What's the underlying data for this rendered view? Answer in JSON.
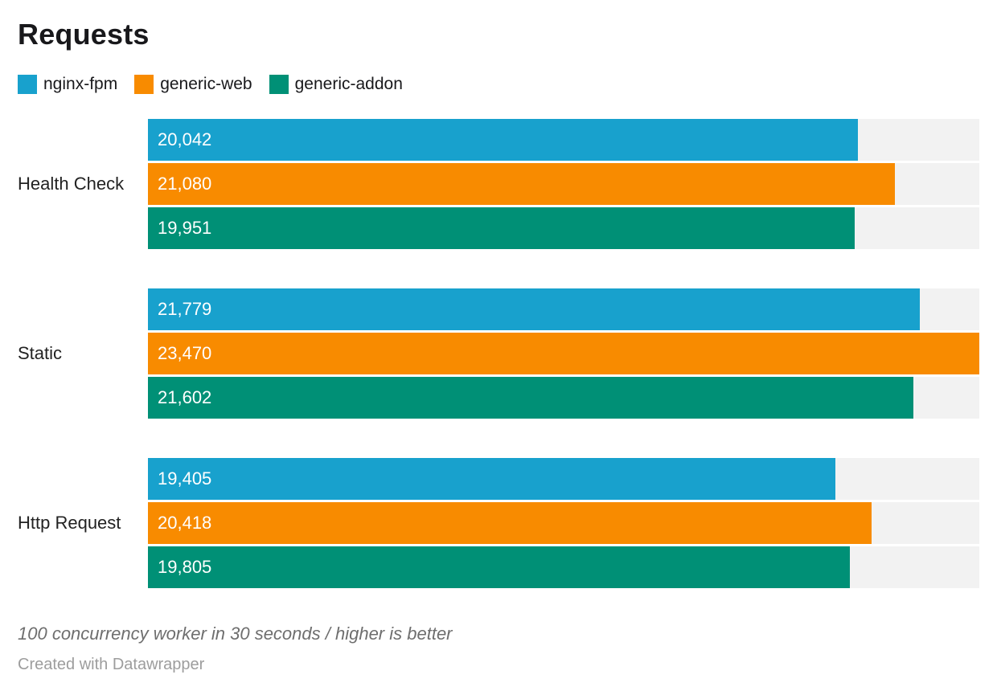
{
  "title": "Requests",
  "note": "100 concurrency worker in 30 seconds / higher is better",
  "attribution": "Created with Datawrapper",
  "colors": {
    "background": "#ffffff",
    "bar_track": "#f2f2f2",
    "title_text": "#18181b",
    "category_text": "#222222",
    "bar_value_text": "#ffffff",
    "note_text": "#6e6e6e",
    "attribution_text": "#9d9d9d"
  },
  "chart_data": {
    "type": "bar",
    "orientation": "horizontal",
    "title": "Requests",
    "categories": [
      "Health Check",
      "Static",
      "Http Request"
    ],
    "series": [
      {
        "name": "nginx-fpm",
        "color": "#18a1cd",
        "values": [
          20042,
          21779,
          19405
        ],
        "labels": [
          "20,042",
          "21,779",
          "19,405"
        ]
      },
      {
        "name": "generic-web",
        "color": "#f88b00",
        "values": [
          21080,
          23470,
          20418
        ],
        "labels": [
          "21,080",
          "23,470",
          "20,418"
        ]
      },
      {
        "name": "generic-addon",
        "color": "#009076",
        "values": [
          19951,
          21602,
          19805
        ],
        "labels": [
          "19,951",
          "21,602",
          "19,805"
        ]
      }
    ],
    "xlim": [
      0,
      23470
    ],
    "grid": false,
    "legend_position": "top",
    "value_labels": "inside-bar-start",
    "note": "100 concurrency worker in 30 seconds / higher is better",
    "attribution": "Created with Datawrapper"
  }
}
